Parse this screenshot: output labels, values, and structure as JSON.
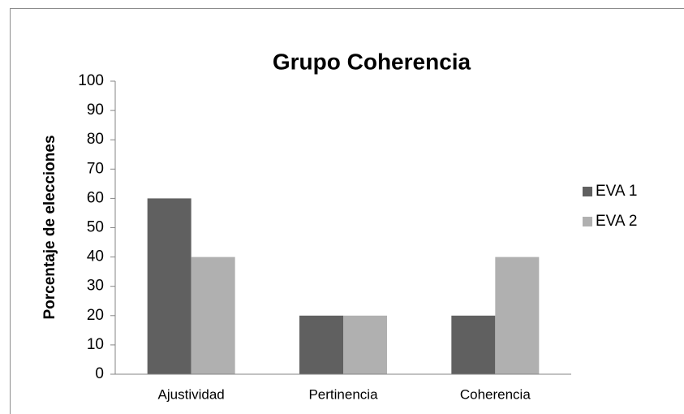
{
  "chart_data": {
    "type": "bar",
    "title": "Grupo Coherencia",
    "ylabel": "Porcentaje de elecciones",
    "categories": [
      "Ajustividad",
      "Pertinencia",
      "Coherencia"
    ],
    "series": [
      {
        "name": "EVA 1",
        "color": "#606060",
        "values": [
          60,
          20,
          20
        ]
      },
      {
        "name": "EVA 2",
        "color": "#b0b0b0",
        "values": [
          40,
          20,
          40
        ]
      }
    ],
    "ylim": [
      0,
      100
    ],
    "yticks": [
      0,
      10,
      20,
      30,
      40,
      50,
      60,
      70,
      80,
      90,
      100
    ],
    "grid": false,
    "legend": "right"
  }
}
